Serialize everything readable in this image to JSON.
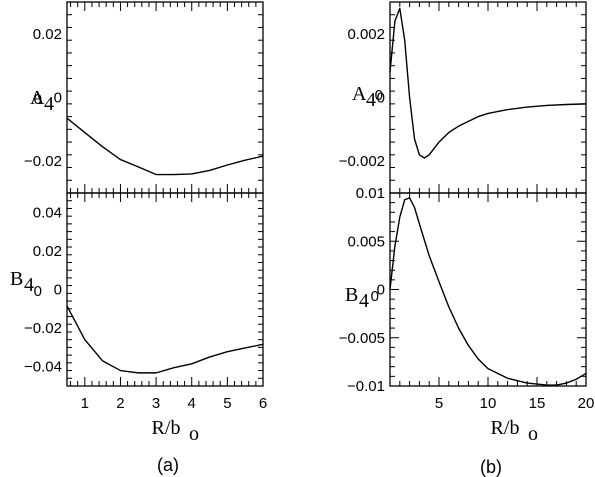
{
  "chart_data": [
    {
      "type": "line",
      "panel": "(a) top",
      "ylabel": "A",
      "ylabel_sub": "4",
      "xlim": [
        0.5,
        6
      ],
      "ylim": [
        -0.03,
        0.03
      ],
      "yticks": [
        {
          "v": 0.02,
          "t": "0.02"
        },
        {
          "v": 0,
          "t": "0"
        },
        {
          "v": -0.02,
          "t": "−0.02"
        }
      ],
      "series": [
        {
          "x": [
            0.5,
            1,
            1.5,
            2,
            2.5,
            3,
            3.5,
            4,
            4.5,
            5,
            5.5,
            6
          ],
          "y": [
            -0.0065,
            -0.011,
            -0.0155,
            -0.0195,
            -0.0218,
            -0.0242,
            -0.0242,
            -0.024,
            -0.0229,
            -0.0212,
            -0.0197,
            -0.0184
          ]
        }
      ]
    },
    {
      "type": "line",
      "panel": "(a) bottom",
      "ylabel": "B",
      "ylabel_sub": "4",
      "xlabel": "R/b",
      "xlabel_sub": "o",
      "xlim": [
        0.5,
        6
      ],
      "ylim": [
        -0.05,
        0.05
      ],
      "xticks": [
        {
          "v": 1,
          "t": "1"
        },
        {
          "v": 2,
          "t": "2"
        },
        {
          "v": 3,
          "t": "3"
        },
        {
          "v": 4,
          "t": "4"
        },
        {
          "v": 5,
          "t": "5"
        },
        {
          "v": 6,
          "t": "6"
        }
      ],
      "yticks": [
        {
          "v": 0.04,
          "t": "0.04"
        },
        {
          "v": 0.02,
          "t": "0.02"
        },
        {
          "v": 0,
          "t": "0"
        },
        {
          "v": -0.02,
          "t": "−0.02"
        },
        {
          "v": -0.04,
          "t": "−0.04"
        }
      ],
      "series": [
        {
          "x": [
            0.5,
            1,
            1.5,
            2,
            2.5,
            3,
            3.5,
            4,
            4.5,
            5,
            5.5,
            6
          ],
          "y": [
            -0.0085,
            -0.026,
            -0.037,
            -0.042,
            -0.0432,
            -0.0432,
            -0.0405,
            -0.0385,
            -0.035,
            -0.0322,
            -0.0303,
            -0.0284
          ]
        }
      ]
    },
    {
      "type": "line",
      "panel": "(b) top",
      "ylabel": "A",
      "ylabel_sub": "4",
      "xlim": [
        0,
        20
      ],
      "ylim": [
        -0.003,
        0.003
      ],
      "yticks": [
        {
          "v": 0.002,
          "t": "0.002"
        },
        {
          "v": 0,
          "t": "0"
        },
        {
          "v": -0.002,
          "t": "−0.002"
        }
      ],
      "series": [
        {
          "x": [
            0,
            0.5,
            1,
            1.5,
            2,
            2.5,
            3,
            3.5,
            4,
            4.5,
            5,
            6,
            7,
            8,
            9,
            10,
            12,
            14,
            16,
            18,
            20
          ],
          "y": [
            0.0008,
            0.0024,
            0.0028,
            0.0018,
            0.0,
            -0.0013,
            -0.0018,
            -0.0019,
            -0.0018,
            -0.0016,
            -0.0014,
            -0.0011,
            -0.0009,
            -0.00075,
            -0.0006,
            -0.0005,
            -0.00038,
            -0.0003,
            -0.00025,
            -0.00022,
            -0.0002
          ]
        }
      ]
    },
    {
      "type": "line",
      "panel": "(b) bottom",
      "ylabel": "B",
      "ylabel_sub": "4",
      "xlabel": "R/b",
      "xlabel_sub": "o",
      "xlim": [
        0,
        20
      ],
      "ylim": [
        -0.01,
        0.01
      ],
      "xticks": [
        {
          "v": 5,
          "t": "5"
        },
        {
          "v": 10,
          "t": "10"
        },
        {
          "v": 15,
          "t": "15"
        },
        {
          "v": 20,
          "t": "20"
        }
      ],
      "yticks": [
        {
          "v": 0.01,
          "t": "0.01"
        },
        {
          "v": 0.005,
          "t": "0.005"
        },
        {
          "v": 0,
          "t": "0"
        },
        {
          "v": -0.005,
          "t": "−0.005"
        },
        {
          "v": -0.01,
          "t": "−0.01"
        }
      ],
      "series": [
        {
          "x": [
            0,
            0.5,
            1,
            1.5,
            2,
            2.5,
            3,
            4,
            5,
            6,
            7,
            8,
            9,
            10,
            12,
            14,
            16,
            17,
            18,
            19,
            20
          ],
          "y": [
            0.0,
            0.0045,
            0.0075,
            0.0093,
            0.0095,
            0.0085,
            0.0068,
            0.0035,
            0.0008,
            -0.0018,
            -0.004,
            -0.0058,
            -0.0072,
            -0.0082,
            -0.0092,
            -0.0097,
            -0.0099,
            -0.0099,
            -0.0097,
            -0.0093,
            -0.0087
          ]
        }
      ]
    }
  ],
  "captions": {
    "a": "(a)",
    "b": "(b)"
  }
}
